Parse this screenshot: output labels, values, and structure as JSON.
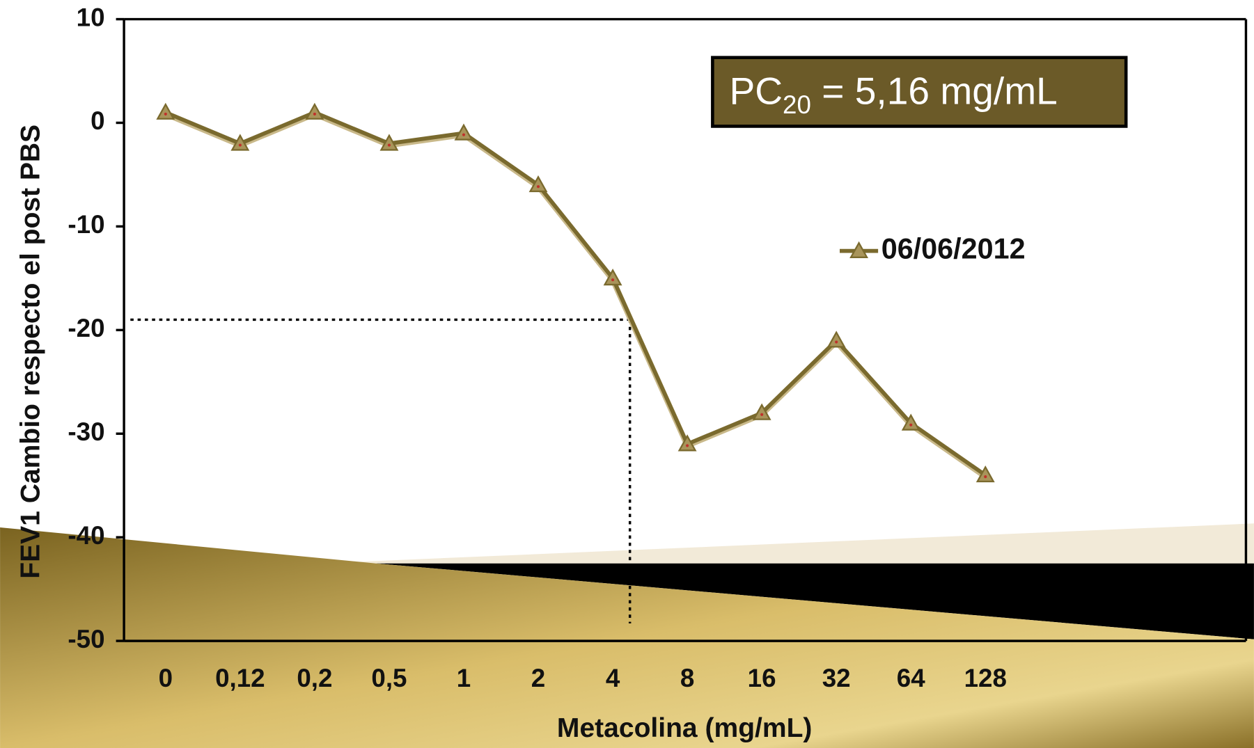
{
  "chart_data": {
    "type": "line",
    "y_axis_label": "FEV1 Cambio respecto el post PBS",
    "x_axis_label": "Metacolina  (mg/mL)",
    "categories": [
      "0",
      "0,12",
      "0,2",
      "0,5",
      "1",
      "2",
      "4",
      "8",
      "16",
      "32",
      "64",
      "128"
    ],
    "series": [
      {
        "name": "06/06/2012",
        "color": "#7a6a2e",
        "values": [
          1,
          -2,
          1,
          -2,
          -1,
          -6,
          -15,
          -31,
          -28,
          -21,
          -29,
          -34
        ]
      }
    ],
    "ylim": [
      -50,
      10
    ],
    "yticks": [
      -50,
      -40,
      -30,
      -20,
      -10,
      0,
      10
    ],
    "annotation": {
      "base": "PC",
      "subscript": "20",
      "rest": " = 5,16 mg/mL"
    },
    "dotted_lines": {
      "x_index": 6.23,
      "y": -19
    }
  }
}
